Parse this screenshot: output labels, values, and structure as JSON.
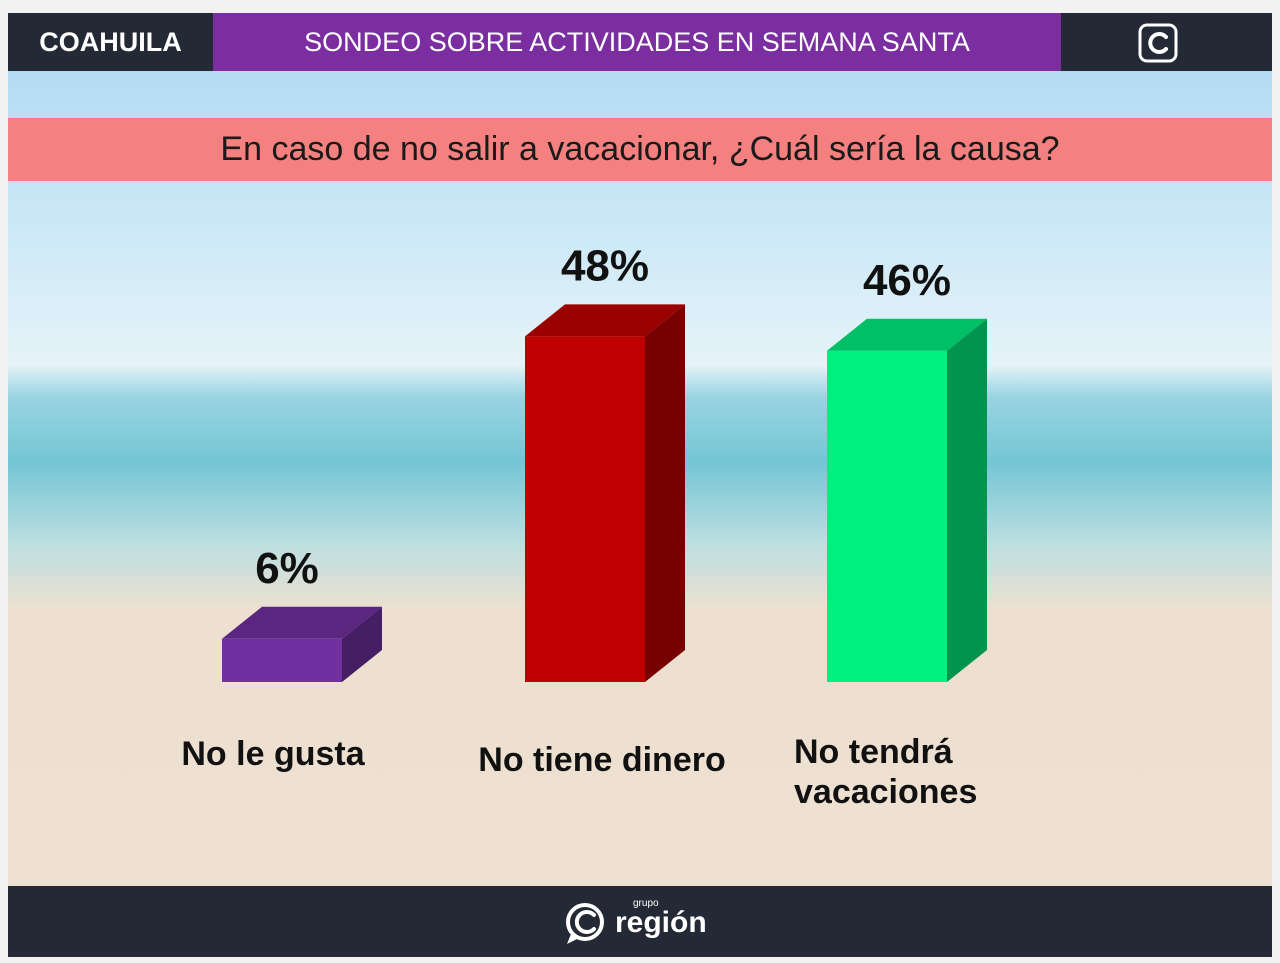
{
  "header": {
    "region": "COAHUILA",
    "title": "SONDEO SOBRE ACTIVIDADES EN SEMANA SANTA"
  },
  "question": "En caso de no salir a vacacionar, ¿Cuál sería la causa?",
  "chart_data": {
    "type": "bar",
    "title": "",
    "categories": [
      "No le gusta",
      "No tiene dinero",
      "No tendrá vacaciones"
    ],
    "values": [
      6,
      48,
      46
    ],
    "value_labels": [
      "6%",
      "48%",
      "46%"
    ],
    "colors": [
      "#7030a0",
      "#c00000",
      "#00f080"
    ],
    "ylim": [
      0,
      50
    ],
    "grid": false,
    "legend": "none"
  },
  "footer": {
    "brand_small": "grupo",
    "brand_name": "región"
  }
}
